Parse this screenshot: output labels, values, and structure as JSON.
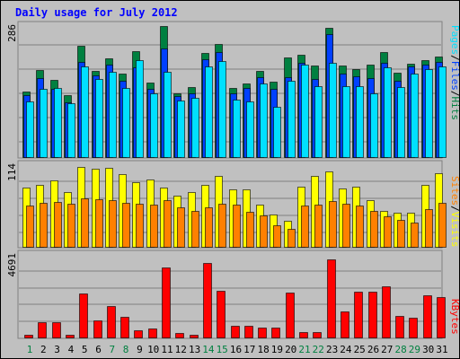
{
  "colors": {
    "background": "#c0c0c0",
    "panel": "#c0c0c0",
    "grid": "#808080",
    "title": "#0000ff",
    "hits": "#008040",
    "files": "#0040ff",
    "pages": "#00e0ff",
    "visits": "#ffff00",
    "sites": "#ff8000",
    "kbytes": "#ff0000",
    "weekend_day": "#008040",
    "weekday": "#000000",
    "slash": "#000000"
  },
  "chart_data": {
    "type": "bar",
    "title": "Daily usage for July 2012",
    "categories": [
      "1",
      "2",
      "3",
      "4",
      "5",
      "6",
      "7",
      "8",
      "9",
      "10",
      "11",
      "12",
      "13",
      "14",
      "15",
      "16",
      "17",
      "18",
      "19",
      "20",
      "21",
      "22",
      "23",
      "24",
      "25",
      "26",
      "27",
      "28",
      "29",
      "30",
      "31"
    ],
    "weekend_days": [
      "1",
      "7",
      "8",
      "14",
      "15",
      "21",
      "22",
      "28",
      "29"
    ],
    "grid": true,
    "panels": [
      {
        "id": "top",
        "max_label": "286",
        "ylim": [
          0,
          286
        ],
        "legend": [
          "Pages",
          "/",
          "Files",
          "/",
          "Hits"
        ],
        "series": [
          {
            "name": "Hits",
            "values": [
              143,
              190,
              168,
              135,
              242,
              188,
              215,
              182,
              232,
              162,
              286,
              140,
              153,
              228,
              246,
              150,
              161,
              188,
              165,
              218,
              224,
              200,
              282,
              200,
              192,
              202,
              230,
              185,
              204,
              212,
              220
            ]
          },
          {
            "name": "Files",
            "values": [
              136,
              172,
              148,
              120,
              208,
              178,
              202,
              166,
              196,
              148,
              238,
              134,
              140,
              213,
              230,
              140,
              150,
              175,
              148,
              175,
              205,
              170,
              268,
              182,
              176,
              172,
              206,
              166,
              198,
              202,
              208
            ]
          },
          {
            "name": "Pages",
            "values": [
              122,
              148,
              150,
              118,
              198,
              170,
              186,
              150,
              212,
              140,
              187,
              124,
              129,
              197,
              210,
              125,
              122,
              160,
              110,
              167,
              202,
              155,
              205,
              155,
              155,
              140,
              195,
              152,
              183,
              192,
              198
            ]
          }
        ]
      },
      {
        "id": "middle",
        "max_label": "114",
        "ylim": [
          0,
          114
        ],
        "legend": [
          "Sites",
          "/",
          "Visits"
        ],
        "series": [
          {
            "name": "Visits",
            "values": [
              82,
              86,
              92,
              76,
              110,
              108,
              109,
              100,
              89,
              93,
              82,
              71,
              75,
              86,
              98,
              79,
              79,
              58,
              44,
              36,
              83,
              98,
              104,
              80,
              83,
              64,
              50,
              47,
              47,
              86,
              102
            ]
          },
          {
            "name": "Sites",
            "values": [
              57,
              61,
              62,
              60,
              67,
              66,
              65,
              61,
              60,
              58,
              64,
              55,
              50,
              55,
              59,
              58,
              48,
              43,
              30,
              25,
              57,
              58,
              63,
              59,
              57,
              49,
              42,
              37,
              33,
              52,
              61
            ]
          }
        ]
      },
      {
        "id": "bottom",
        "max_label": "4691",
        "ylim": [
          0,
          4691
        ],
        "legend": [
          "KBytes"
        ],
        "series": [
          {
            "name": "KBytes",
            "values": [
              150,
              850,
              850,
              150,
              2450,
              950,
              1750,
              1150,
              400,
              500,
              3950,
              250,
              150,
              4200,
              2600,
              650,
              650,
              550,
              550,
              2500,
              300,
              300,
              4400,
              1450,
              2550,
              2550,
              2850,
              1200,
              1100,
              2350,
              2250
            ]
          }
        ]
      }
    ]
  }
}
